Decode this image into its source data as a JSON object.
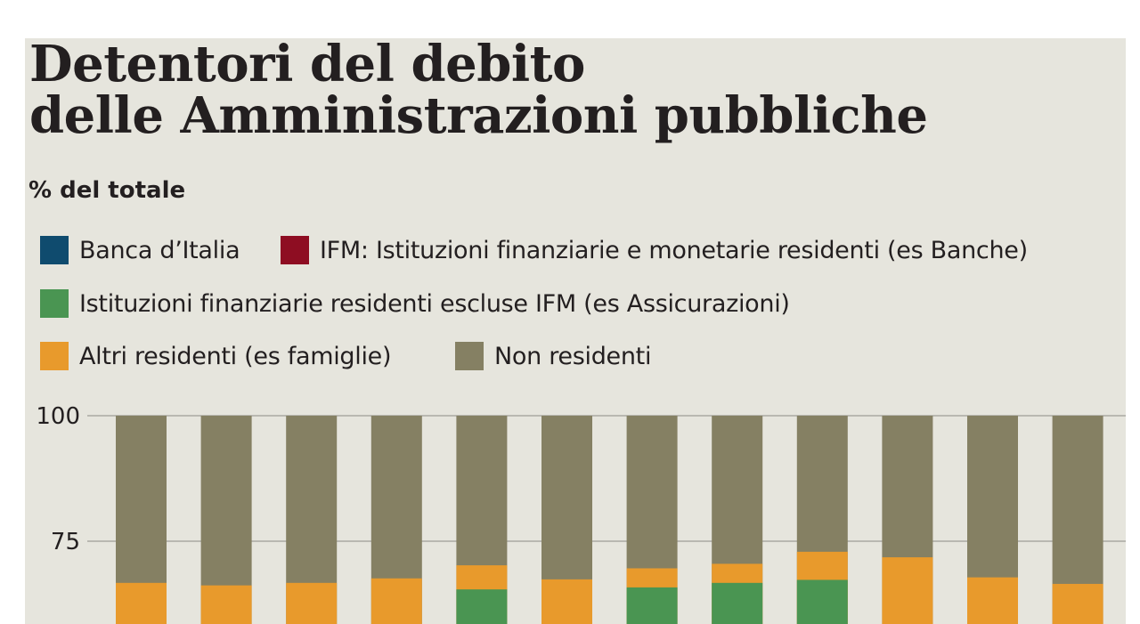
{
  "title_line1": "Detentori del debito",
  "title_line2": "delle Amministrazioni pubbliche",
  "subtitle": "% del totale",
  "legend": [
    {
      "label": "Banca d’Italia",
      "color": "#0f4b6e"
    },
    {
      "label": "IFM: Istituzioni finanziarie e monetarie residenti (es Banche)",
      "color": "#8e0d22"
    },
    {
      "label": "Istituzioni finanziarie residenti escluse IFM (es Assicurazioni)",
      "color": "#4a9552"
    },
    {
      "label": "Altri residenti (es famiglie)",
      "color": "#e89a2c"
    },
    {
      "label": "Non residenti",
      "color": "#858063"
    }
  ],
  "chart_data": {
    "type": "bar",
    "stacked": true,
    "title": "Detentori del debito delle Amministrazioni pubbliche",
    "ylabel": "% del totale",
    "ylim_visible": [
      65,
      100
    ],
    "yticks": [
      75,
      100
    ],
    "grid": true,
    "categories": [
      "",
      "",
      "",
      "",
      "",
      "",
      "",
      "",
      "",
      "",
      "",
      ""
    ],
    "series": [
      {
        "name": "Istituzioni finanziarie residenti escluse IFM (es Assicurazioni)",
        "color": "#4a9552",
        "values": [
          null,
          null,
          null,
          null,
          65.4,
          null,
          65.8,
          66.7,
          67.3,
          null,
          null,
          null
        ]
      },
      {
        "name": "Altri residenti (es famiglie)",
        "color": "#e89a2c",
        "values": [
          66.7,
          66.2,
          66.7,
          67.6,
          70.2,
          67.4,
          69.6,
          70.5,
          72.9,
          71.8,
          67.8,
          66.5
        ]
      },
      {
        "name": "Non residenti",
        "color": "#858063",
        "values": [
          100,
          100,
          100,
          100,
          100,
          100,
          100,
          100,
          100,
          100,
          100,
          100
        ]
      }
    ]
  }
}
